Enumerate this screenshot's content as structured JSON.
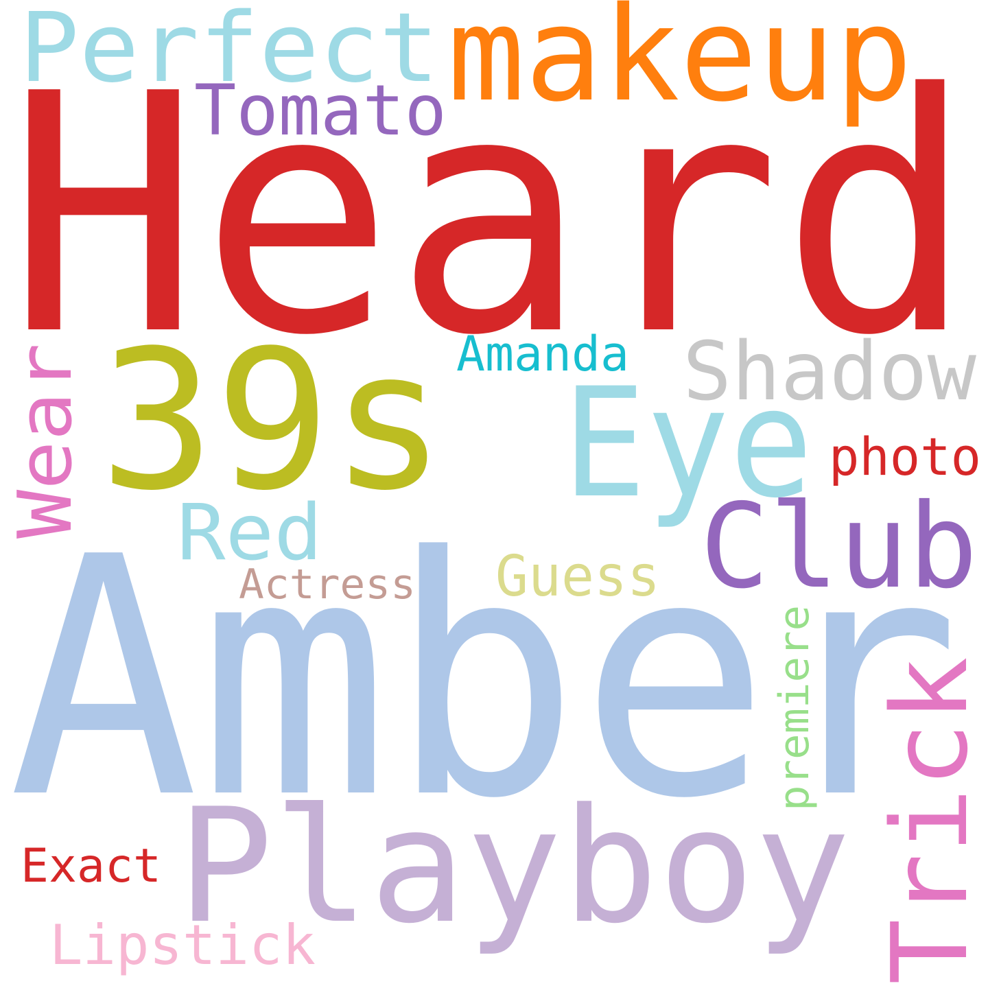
{
  "words": {
    "heard": {
      "text": "Heard",
      "color": "#d62728"
    },
    "amber": {
      "text": "Amber",
      "color": "#aec7e8"
    },
    "n39s": {
      "text": "39s",
      "color": "#bcbd22"
    },
    "eye": {
      "text": "Eye",
      "color": "#9edae5"
    },
    "makeup": {
      "text": "makeup",
      "color": "#ff7f0e"
    },
    "perfect": {
      "text": "Perfect",
      "color": "#9edae5"
    },
    "playboy": {
      "text": "Playboy",
      "color": "#c5b0d5"
    },
    "club": {
      "text": "Club",
      "color": "#9467bd"
    },
    "shadow": {
      "text": "Shadow",
      "color": "#c7c7c7"
    },
    "tomato": {
      "text": "Tomato",
      "color": "#9467bd"
    },
    "trick": {
      "text": "Trick",
      "color": "#e377c2"
    },
    "wear": {
      "text": "Wear",
      "color": "#e377c2"
    },
    "red": {
      "text": "Red",
      "color": "#9edae5"
    },
    "guess": {
      "text": "Guess",
      "color": "#dbdb8d"
    },
    "amanda": {
      "text": "Amanda",
      "color": "#17becf"
    },
    "photo": {
      "text": "photo",
      "color": "#d62728"
    },
    "actress": {
      "text": "Actress",
      "color": "#c49c94"
    },
    "premiere": {
      "text": "premiere",
      "color": "#98df8a"
    },
    "exact": {
      "text": "Exact",
      "color": "#d62728"
    },
    "lipstick": {
      "text": "Lipstick",
      "color": "#f7b6d2"
    }
  }
}
